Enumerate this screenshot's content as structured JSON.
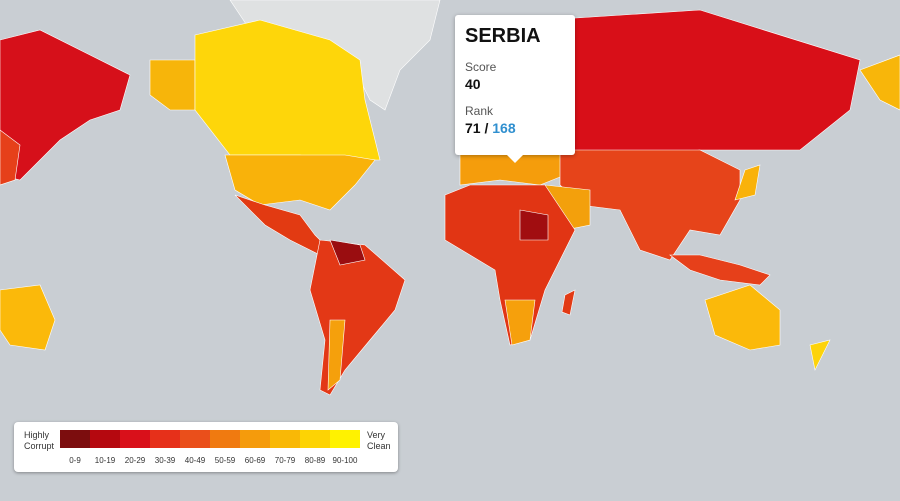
{
  "tooltip": {
    "country": "SERBIA",
    "score_label": "Score",
    "score": 40,
    "rank_label": "Rank",
    "rank": 71,
    "rank_separator": "/",
    "rank_total": 168
  },
  "legend": {
    "low_label": "Highly Corrupt",
    "high_label": "Very Clean",
    "bins": [
      {
        "label": "0-9",
        "color": "#7c0d0e"
      },
      {
        "label": "10-19",
        "color": "#b5080f"
      },
      {
        "label": "20-29",
        "color": "#d9101a"
      },
      {
        "label": "30-39",
        "color": "#e6301a"
      },
      {
        "label": "40-49",
        "color": "#ea4f1b"
      },
      {
        "label": "50-59",
        "color": "#f07a10"
      },
      {
        "label": "60-69",
        "color": "#f59b0c"
      },
      {
        "label": "70-79",
        "color": "#f9b806"
      },
      {
        "label": "80-89",
        "color": "#fdd304"
      },
      {
        "label": "90-100",
        "color": "#fff200"
      }
    ]
  }
}
